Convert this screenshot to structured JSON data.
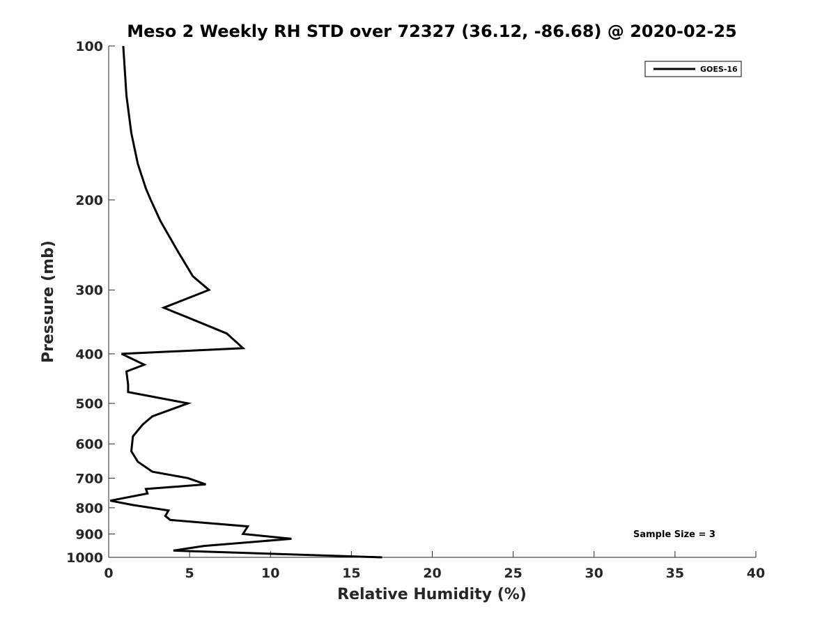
{
  "chart_data": {
    "type": "line",
    "title": "Meso 2 Weekly RH STD over 72327 (36.12, -86.68) @ 2020-02-25",
    "xlabel": "Relative Humidity (%)",
    "ylabel": "Pressure (mb)",
    "xlim": [
      0,
      40
    ],
    "ylim": [
      100,
      1000
    ],
    "y_scale": "log",
    "y_reversed": true,
    "x_ticks": [
      "0",
      "5",
      "10",
      "15",
      "20",
      "25",
      "30",
      "35",
      "40"
    ],
    "y_ticks": [
      "100",
      "200",
      "300",
      "400",
      "500",
      "600",
      "700",
      "800",
      "900",
      "1000"
    ],
    "grid": false,
    "legend_position": "top-right",
    "annotation": "Sample Size = 3",
    "series": [
      {
        "name": "GOES-16",
        "color": "#000000",
        "x": [
          0.9,
          1.1,
          1.4,
          1.8,
          2.3,
          2.6,
          3.2,
          4.3,
          5.2,
          6.2,
          3.4,
          5.9,
          7.3,
          8.3,
          0.8,
          2.2,
          1.1,
          1.2,
          1.2,
          4.9,
          2.7,
          2.1,
          1.5,
          1.4,
          1.8,
          2.7,
          4.9,
          6.0,
          2.3,
          2.4,
          0.1,
          1.5,
          3.7,
          3.5,
          3.8,
          8.6,
          8.3,
          11.3,
          5.9,
          4.0,
          16.9
        ],
        "y": [
          100,
          125,
          148,
          170,
          190,
          200,
          220,
          253,
          282,
          300,
          325,
          350,
          365,
          390,
          400,
          420,
          433,
          460,
          475,
          500,
          530,
          550,
          580,
          620,
          650,
          680,
          700,
          720,
          735,
          750,
          775,
          790,
          810,
          830,
          845,
          870,
          900,
          920,
          950,
          970,
          1000
        ]
      }
    ]
  }
}
